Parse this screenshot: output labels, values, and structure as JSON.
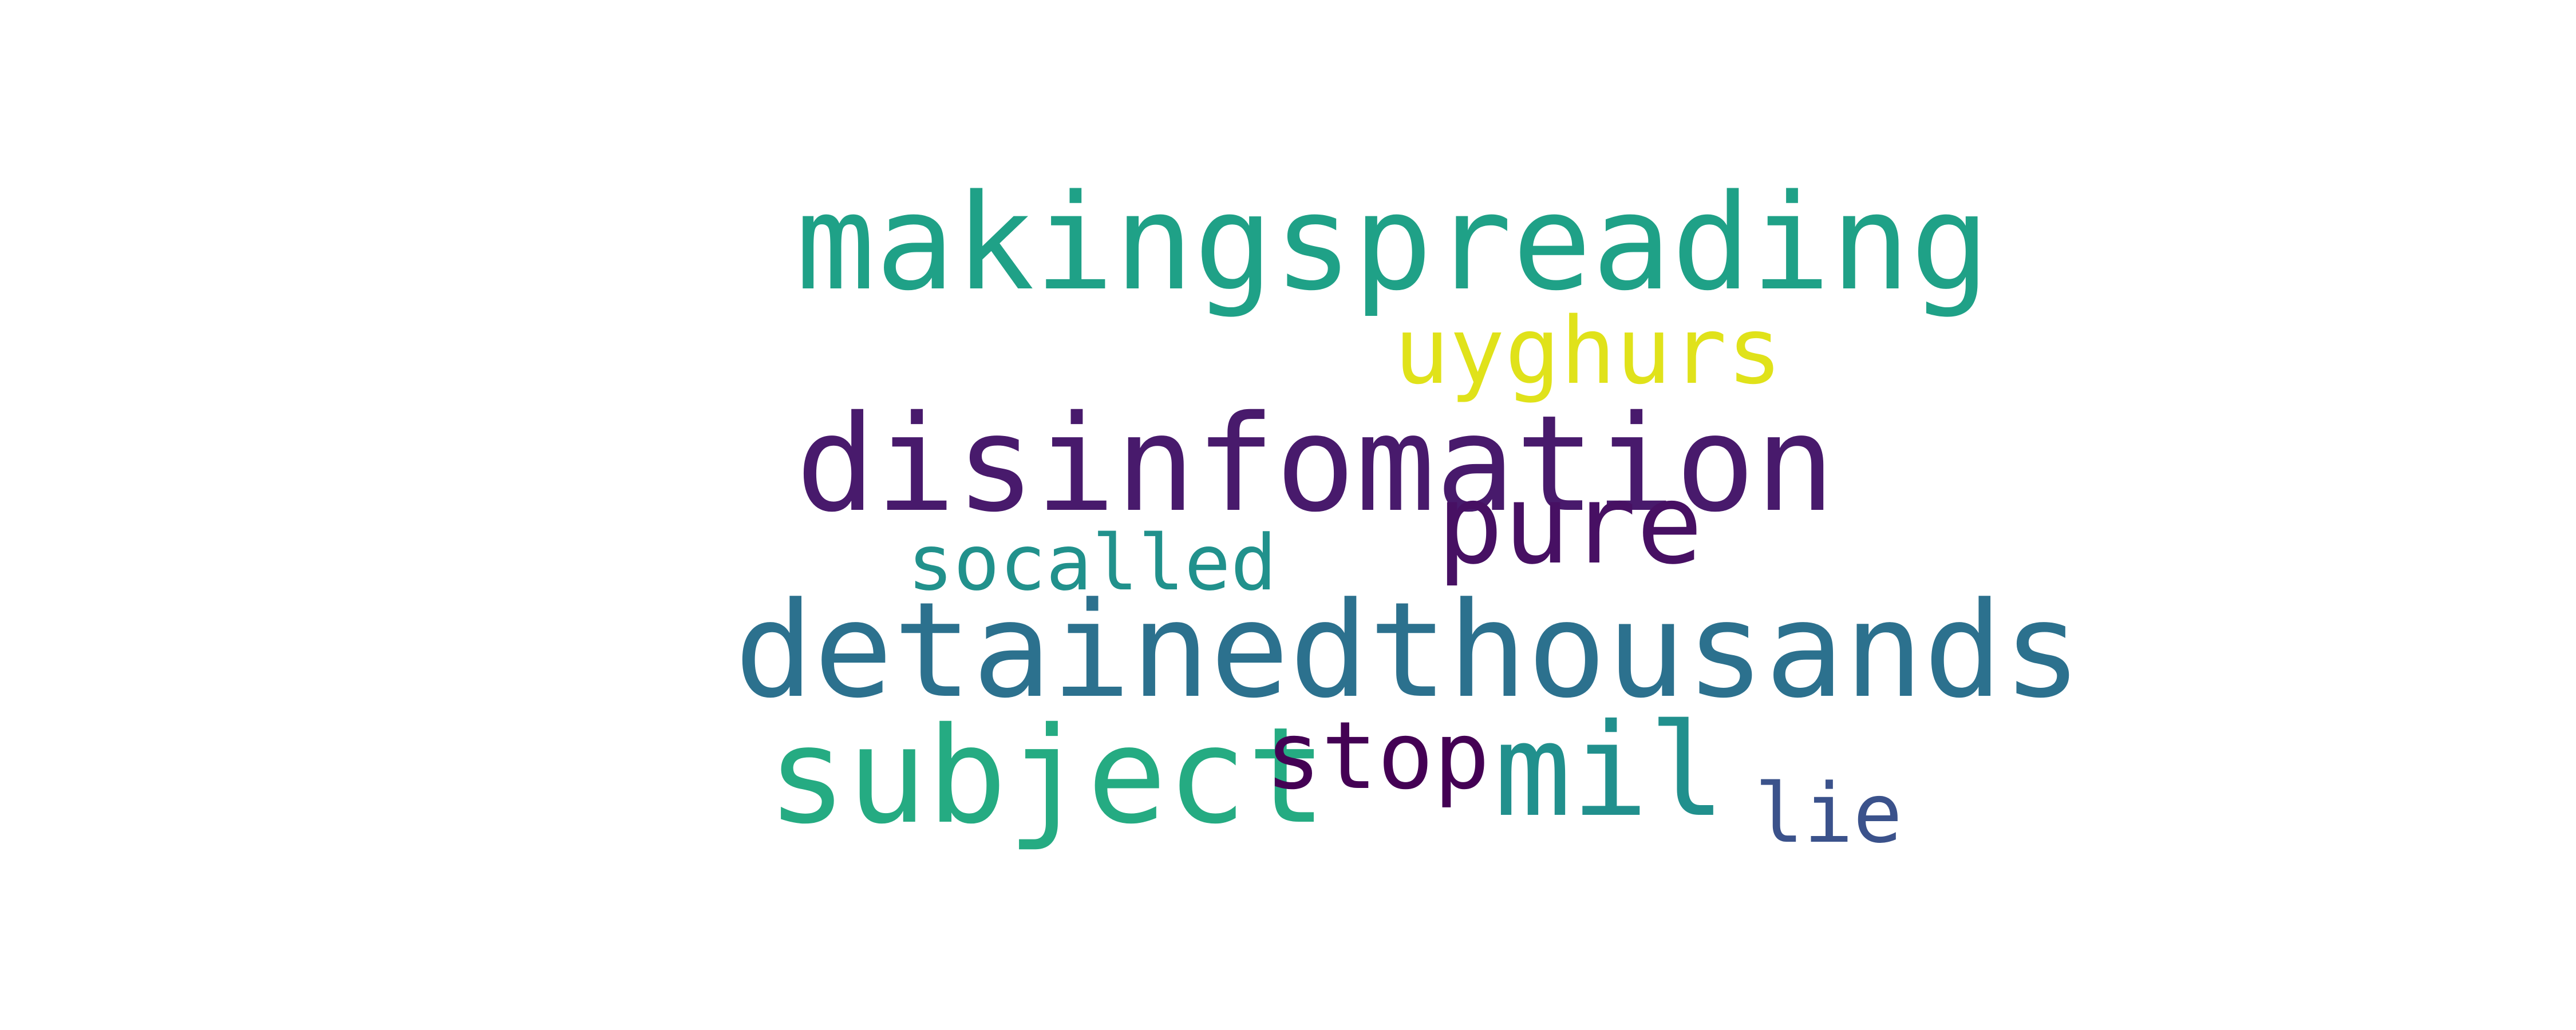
{
  "words": [
    {
      "text": "makingspreading",
      "color": "#1fa187"
    },
    {
      "text": "uyghurs",
      "color": "#e0e21a"
    },
    {
      "text": "disinfomation",
      "color": "#481a6c"
    },
    {
      "text": "pure",
      "color": "#471063"
    },
    {
      "text": "socalled",
      "color": "#21918c"
    },
    {
      "text": "detainedthousands",
      "color": "#2c718e"
    },
    {
      "text": "subject",
      "color": "#25ab82"
    },
    {
      "text": "stop",
      "color": "#440154"
    },
    {
      "text": "mil",
      "color": "#21908d"
    },
    {
      "text": "lie",
      "color": "#3b528b"
    }
  ]
}
